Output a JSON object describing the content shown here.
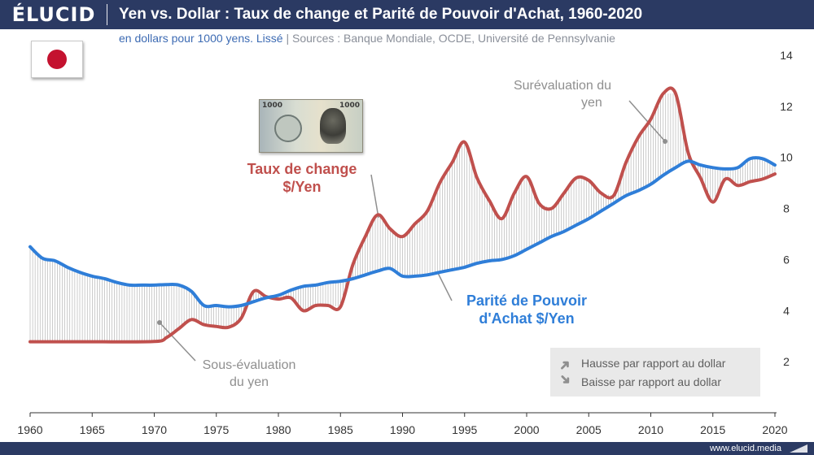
{
  "header": {
    "logo": "ÉLUCID",
    "title": "Yen vs. Dollar : Taux de change et Parité de Pouvoir d'Achat, 1960-2020",
    "subtitle_unit": "en dollars pour 1000 yens. Lissé",
    "subtitle_sep": "|",
    "subtitle_sources": "Sources : Banque Mondiale, OCDE, Université de Pennsylvanie"
  },
  "flag_icon": "japan-flag-icon",
  "banknote": {
    "denomination": "1000"
  },
  "colors": {
    "header_bg": "#2b3a63",
    "exchange_rate": "#c0504d",
    "ppp": "#2f7ed8",
    "annotation": "#8f8f8f"
  },
  "legend": {
    "up_label": "Hausse par rapport au dollar",
    "down_label": "Baisse par rapport au dollar",
    "up_icon": "arrow-up-right-icon",
    "down_icon": "arrow-down-right-icon"
  },
  "annotations": {
    "undervaluation": [
      "Sous-évaluation",
      "du yen"
    ],
    "overvaluation": [
      "Surévaluation du",
      "yen"
    ]
  },
  "footer": {
    "url": "www.elucid.media"
  },
  "chart_data": {
    "type": "line",
    "xlim": [
      1960,
      2020
    ],
    "ylim": [
      0,
      14
    ],
    "x_ticks": [
      "1960",
      "1965",
      "1970",
      "1975",
      "1980",
      "1985",
      "1990",
      "1995",
      "2000",
      "2005",
      "2010",
      "2015",
      "2020"
    ],
    "y_ticks": [
      "2",
      "4",
      "6",
      "8",
      "10",
      "12",
      "14"
    ],
    "y_axis_side": "right",
    "grid": false,
    "gap_shading": "vertical hatch lines between series",
    "series": [
      {
        "name": "Taux de change $/Yen",
        "label_lines": [
          "Taux de change",
          "$/Yen"
        ],
        "color": "#c0504d",
        "points": [
          [
            1960,
            2.78
          ],
          [
            1965,
            2.78
          ],
          [
            1970,
            2.79
          ],
          [
            1971,
            2.95
          ],
          [
            1972,
            3.3
          ],
          [
            1973,
            3.65
          ],
          [
            1974,
            3.45
          ],
          [
            1975,
            3.38
          ],
          [
            1976,
            3.35
          ],
          [
            1977,
            3.7
          ],
          [
            1978,
            4.75
          ],
          [
            1979,
            4.55
          ],
          [
            1980,
            4.45
          ],
          [
            1981,
            4.5
          ],
          [
            1982,
            4.0
          ],
          [
            1983,
            4.2
          ],
          [
            1984,
            4.2
          ],
          [
            1985,
            4.15
          ],
          [
            1986,
            5.8
          ],
          [
            1987,
            6.9
          ],
          [
            1988,
            7.75
          ],
          [
            1989,
            7.2
          ],
          [
            1990,
            6.9
          ],
          [
            1991,
            7.4
          ],
          [
            1992,
            7.9
          ],
          [
            1993,
            9.0
          ],
          [
            1994,
            9.8
          ],
          [
            1995,
            10.6
          ],
          [
            1996,
            9.2
          ],
          [
            1997,
            8.3
          ],
          [
            1998,
            7.6
          ],
          [
            1999,
            8.6
          ],
          [
            2000,
            9.25
          ],
          [
            2001,
            8.2
          ],
          [
            2002,
            8.0
          ],
          [
            2003,
            8.6
          ],
          [
            2004,
            9.2
          ],
          [
            2005,
            9.1
          ],
          [
            2006,
            8.6
          ],
          [
            2007,
            8.5
          ],
          [
            2008,
            9.8
          ],
          [
            2009,
            10.8
          ],
          [
            2010,
            11.5
          ],
          [
            2011,
            12.5
          ],
          [
            2012,
            12.5
          ],
          [
            2013,
            10.2
          ],
          [
            2014,
            9.2
          ],
          [
            2015,
            8.25
          ],
          [
            2016,
            9.15
          ],
          [
            2017,
            8.9
          ],
          [
            2018,
            9.05
          ],
          [
            2019,
            9.15
          ],
          [
            2020,
            9.35
          ]
        ]
      },
      {
        "name": "Parité de Pouvoir d'Achat $/Yen",
        "label_lines": [
          "Parité de Pouvoir",
          "d'Achat $/Yen"
        ],
        "color": "#2f7ed8",
        "points": [
          [
            1960,
            6.5
          ],
          [
            1961,
            6.05
          ],
          [
            1962,
            5.95
          ],
          [
            1963,
            5.7
          ],
          [
            1964,
            5.5
          ],
          [
            1965,
            5.35
          ],
          [
            1966,
            5.25
          ],
          [
            1967,
            5.1
          ],
          [
            1968,
            5.0
          ],
          [
            1969,
            5.0
          ],
          [
            1970,
            5.0
          ],
          [
            1971,
            5.02
          ],
          [
            1972,
            5.0
          ],
          [
            1973,
            4.75
          ],
          [
            1974,
            4.2
          ],
          [
            1975,
            4.2
          ],
          [
            1976,
            4.15
          ],
          [
            1977,
            4.2
          ],
          [
            1978,
            4.35
          ],
          [
            1979,
            4.5
          ],
          [
            1980,
            4.6
          ],
          [
            1981,
            4.8
          ],
          [
            1982,
            4.95
          ],
          [
            1983,
            5.0
          ],
          [
            1984,
            5.1
          ],
          [
            1985,
            5.15
          ],
          [
            1986,
            5.25
          ],
          [
            1987,
            5.4
          ],
          [
            1988,
            5.55
          ],
          [
            1989,
            5.65
          ],
          [
            1990,
            5.35
          ],
          [
            1991,
            5.35
          ],
          [
            1992,
            5.4
          ],
          [
            1993,
            5.5
          ],
          [
            1994,
            5.6
          ],
          [
            1995,
            5.7
          ],
          [
            1996,
            5.85
          ],
          [
            1997,
            5.95
          ],
          [
            1998,
            6.0
          ],
          [
            1999,
            6.15
          ],
          [
            2000,
            6.4
          ],
          [
            2001,
            6.65
          ],
          [
            2002,
            6.9
          ],
          [
            2003,
            7.1
          ],
          [
            2004,
            7.35
          ],
          [
            2005,
            7.6
          ],
          [
            2006,
            7.9
          ],
          [
            2007,
            8.2
          ],
          [
            2008,
            8.5
          ],
          [
            2009,
            8.7
          ],
          [
            2010,
            8.95
          ],
          [
            2011,
            9.3
          ],
          [
            2012,
            9.6
          ],
          [
            2013,
            9.85
          ],
          [
            2014,
            9.7
          ],
          [
            2015,
            9.6
          ],
          [
            2016,
            9.55
          ],
          [
            2017,
            9.6
          ],
          [
            2018,
            9.95
          ],
          [
            2019,
            9.95
          ],
          [
            2020,
            9.7
          ]
        ]
      }
    ]
  }
}
